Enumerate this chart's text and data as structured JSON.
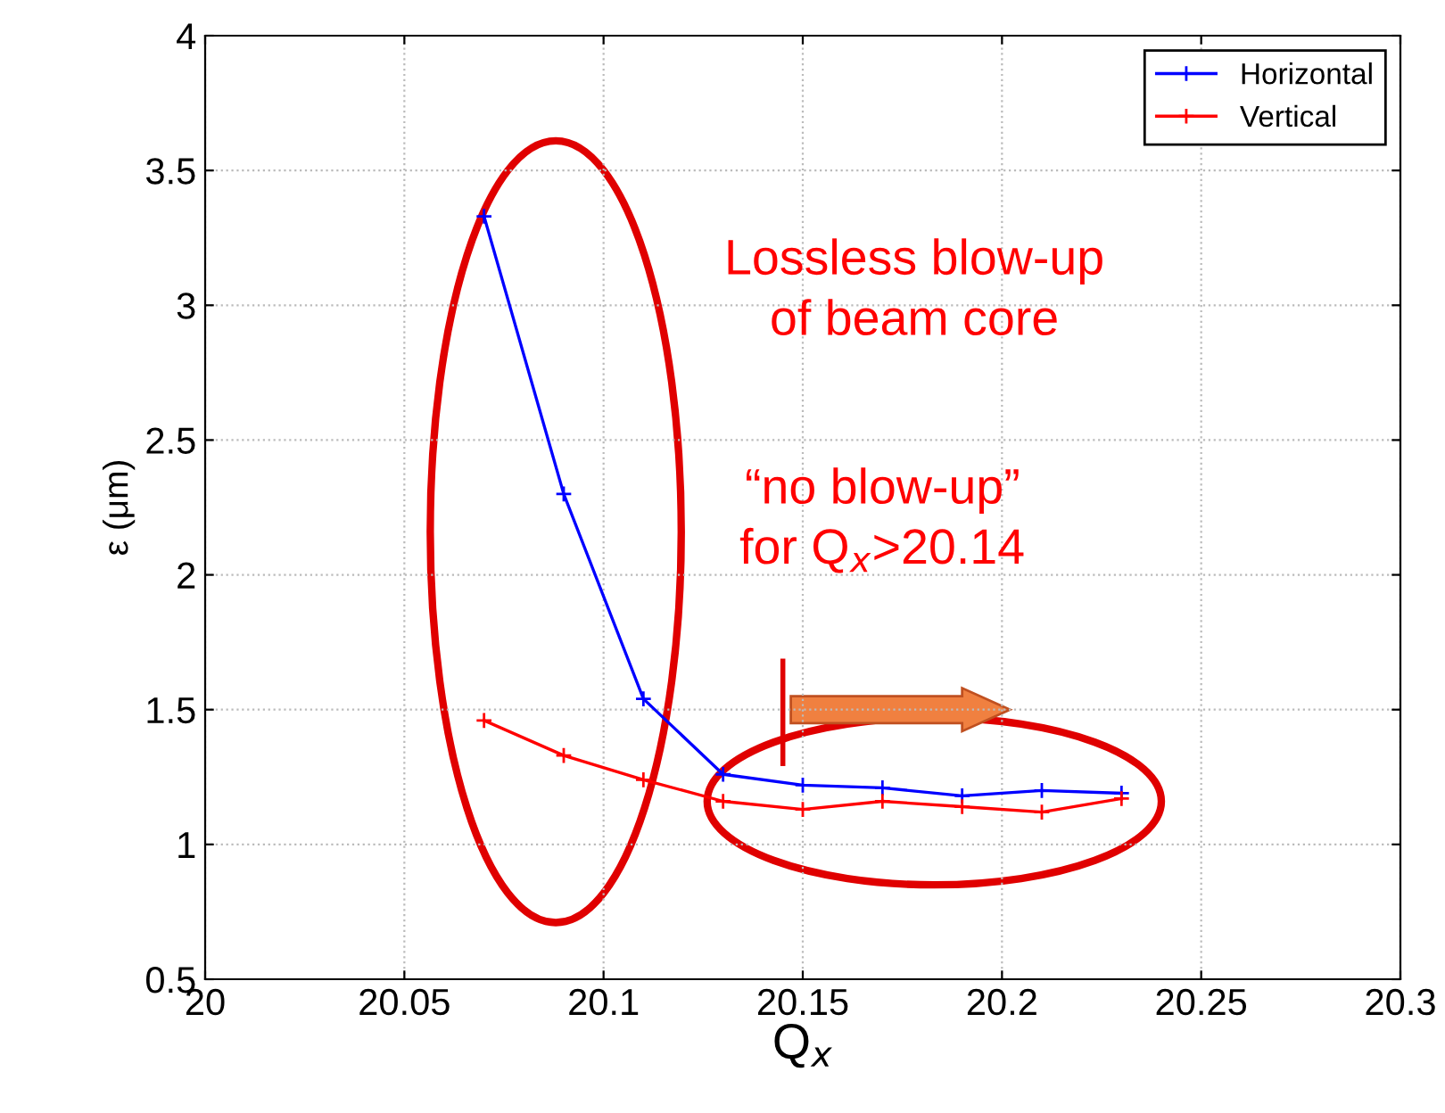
{
  "chart_data": {
    "type": "line",
    "xlabel": "Q$_{x}$",
    "ylabel": "ε (μm)",
    "x": [
      20.07,
      20.09,
      20.11,
      20.13,
      20.15,
      20.17,
      20.19,
      20.21,
      20.23
    ],
    "series": [
      {
        "name": "Horizontal",
        "color": "#0000ff",
        "values": [
          3.33,
          2.3,
          1.54,
          1.26,
          1.22,
          1.21,
          1.18,
          1.2,
          1.19
        ]
      },
      {
        "name": "Vertical",
        "color": "#ff0000",
        "values": [
          1.46,
          1.33,
          1.24,
          1.16,
          1.13,
          1.16,
          1.14,
          1.12,
          1.17
        ]
      }
    ],
    "xlim": [
      20,
      20.3
    ],
    "xticks": [
      20,
      20.05,
      20.1,
      20.15,
      20.2,
      20.25,
      20.3
    ],
    "ylim": [
      0.5,
      4
    ],
    "yticks": [
      0.5,
      1,
      1.5,
      2,
      2.5,
      3,
      3.5,
      4
    ],
    "grid": true,
    "legend": "top right",
    "marker": "cross",
    "line_style": "solid",
    "annotations": [
      "Lossless blow-up\nof beam core",
      "“no blow-up”\nfor Q$_{x}$>20.14"
    ]
  }
}
